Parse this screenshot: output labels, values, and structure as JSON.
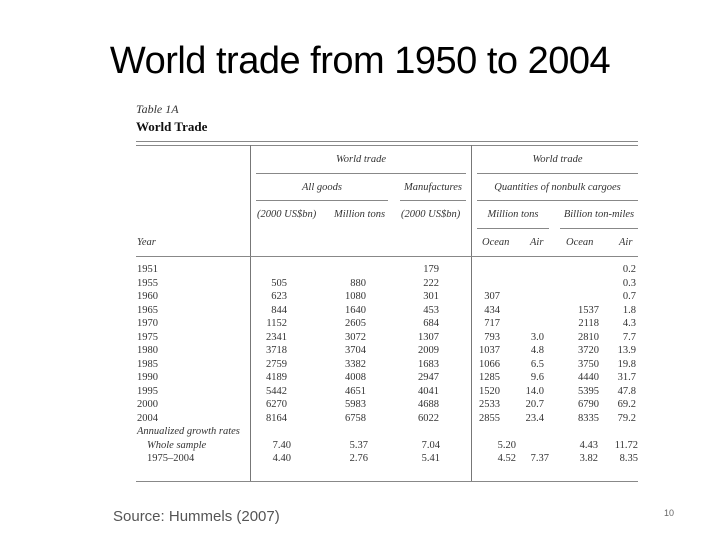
{
  "slide": {
    "title": "World trade from 1950 to 2004",
    "source": "Source: Hummels (2007)",
    "page_number": "10"
  },
  "table": {
    "label": "Table 1A",
    "title": "World Trade",
    "headers": {
      "group_left": "World trade",
      "group_right": "World trade",
      "all_goods": "All goods",
      "manufactures": "Manufactures",
      "nonbulk": "Quantities of nonbulk cargoes",
      "usd_bn_1": "(2000 US$bn)",
      "million_tons_1": "Million tons",
      "usd_bn_2": "(2000 US$bn)",
      "million_tons_2": "Million tons",
      "billion_ton_miles": "Billion ton-miles",
      "year": "Year",
      "ocean_1": "Ocean",
      "air_1": "Air",
      "ocean_2": "Ocean",
      "air_2": "Air"
    },
    "columns": [
      "Year",
      "All goods (2000 US$bn)",
      "All goods Million tons",
      "Manufactures (2000 US$bn)",
      "Million tons Ocean",
      "Million tons Air",
      "Billion ton-miles Ocean",
      "Billion ton-miles Air"
    ],
    "rows": [
      {
        "year": "1951",
        "v": [
          "",
          "",
          "179",
          "",
          "",
          "",
          "0.2"
        ]
      },
      {
        "year": "1955",
        "v": [
          "505",
          "880",
          "222",
          "",
          "",
          "",
          "0.3"
        ]
      },
      {
        "year": "1960",
        "v": [
          "623",
          "1080",
          "301",
          "307",
          "",
          "",
          "0.7"
        ]
      },
      {
        "year": "1965",
        "v": [
          "844",
          "1640",
          "453",
          "434",
          "",
          "1537",
          "1.8"
        ]
      },
      {
        "year": "1970",
        "v": [
          "1152",
          "2605",
          "684",
          "717",
          "",
          "2118",
          "4.3"
        ]
      },
      {
        "year": "1975",
        "v": [
          "2341",
          "3072",
          "1307",
          "793",
          "3.0",
          "2810",
          "7.7"
        ]
      },
      {
        "year": "1980",
        "v": [
          "3718",
          "3704",
          "2009",
          "1037",
          "4.8",
          "3720",
          "13.9"
        ]
      },
      {
        "year": "1985",
        "v": [
          "2759",
          "3382",
          "1683",
          "1066",
          "6.5",
          "3750",
          "19.8"
        ]
      },
      {
        "year": "1990",
        "v": [
          "4189",
          "4008",
          "2947",
          "1285",
          "9.6",
          "4440",
          "31.7"
        ]
      },
      {
        "year": "1995",
        "v": [
          "5442",
          "4651",
          "4041",
          "1520",
          "14.0",
          "5395",
          "47.8"
        ]
      },
      {
        "year": "2000",
        "v": [
          "6270",
          "5983",
          "4688",
          "2533",
          "20.7",
          "6790",
          "69.2"
        ]
      },
      {
        "year": "2004",
        "v": [
          "8164",
          "6758",
          "6022",
          "2855",
          "23.4",
          "8335",
          "79.2"
        ]
      }
    ],
    "growth": {
      "label": "Annualized growth rates",
      "rows": [
        {
          "label": "Whole sample",
          "v": [
            "7.40",
            "5.37",
            "7.04",
            "5.20",
            "",
            "4.43",
            "11.72"
          ]
        },
        {
          "label": "1975–2004",
          "v": [
            "4.40",
            "2.76",
            "5.41",
            "4.52",
            "7.37",
            "3.82",
            "8.35"
          ]
        }
      ]
    }
  }
}
